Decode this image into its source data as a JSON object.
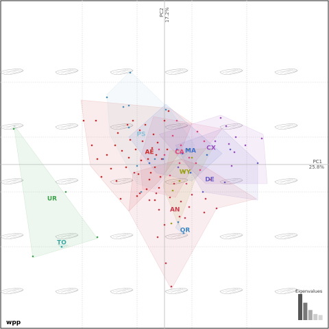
{
  "chart_data": {
    "type": "scatter",
    "title": "",
    "xlabel": "PC1",
    "xlabel_value": "25.8%",
    "ylabel": "PC2",
    "ylabel_value": "17.2%",
    "xlim": [
      -3,
      3
    ],
    "ylim": [
      -3,
      3
    ],
    "grid": true,
    "grid_style": "dotted",
    "convex_hulls": true,
    "background_shapes": "wing-outline",
    "corner_label": "wpp",
    "eigen_title": "Eigenvalues",
    "eigenvalues": [
      0.258,
      0.172,
      0.1,
      0.06,
      0.05
    ],
    "groups": [
      {
        "name": "AE",
        "color": "#cc2a2a",
        "label_at": [
          -0.55,
          0.45
        ],
        "hull": [
          [
            -3.05,
            2.35
          ],
          [
            0.2,
            2.05
          ],
          [
            1.0,
            1.5
          ],
          [
            0.6,
            0.5
          ],
          [
            -0.2,
            -0.6
          ],
          [
            -1.3,
            -1.7
          ],
          [
            -2.7,
            -0.05
          ]
        ]
      },
      {
        "name": "CA",
        "color": "#e0457a",
        "label_at": [
          0.55,
          0.45
        ],
        "hull": [
          [
            -0.4,
            1.75
          ],
          [
            2.1,
            1.3
          ],
          [
            1.2,
            0.2
          ],
          [
            0.4,
            -1.2
          ],
          [
            -0.8,
            -0.9
          ],
          [
            -0.9,
            0.2
          ]
        ]
      },
      {
        "name": "PS",
        "color": "#8fc1d6",
        "label_at": [
          -0.85,
          1.1
        ],
        "hull": [
          [
            -2.1,
            2.55
          ],
          [
            -1.25,
            3.4
          ],
          [
            0.2,
            2.0
          ],
          [
            1.1,
            0.7
          ],
          [
            -0.35,
            -0.9
          ],
          [
            -1.0,
            -0.7
          ],
          [
            -2.0,
            1.1
          ]
        ]
      },
      {
        "name": "MA",
        "color": "#3d6fd1",
        "label_at": [
          0.95,
          0.5
        ],
        "hull": [
          [
            0.05,
            2.2
          ],
          [
            2.1,
            0.4
          ],
          [
            1.0,
            -0.6
          ],
          [
            -0.3,
            -0.3
          ],
          [
            -1.3,
            1.0
          ]
        ]
      },
      {
        "name": "CX",
        "color": "#9b4dbf",
        "label_at": [
          1.7,
          0.6
        ],
        "hull": [
          [
            -0.2,
            1.1
          ],
          [
            2.05,
            1.8
          ],
          [
            3.6,
            1.1
          ],
          [
            3.75,
            -0.7
          ],
          [
            1.5,
            -0.7
          ],
          [
            0.5,
            0.3
          ]
        ]
      },
      {
        "name": "WY",
        "color": "#9aa318",
        "label_at": [
          0.75,
          -0.28
        ],
        "hull": [
          [
            0.2,
            0.5
          ],
          [
            1.75,
            0.6
          ],
          [
            1.1,
            -0.6
          ],
          [
            0.5,
            -2.2
          ],
          [
            -0.05,
            -0.8
          ]
        ]
      },
      {
        "name": "DE",
        "color": "#6b5fc7",
        "label_at": [
          1.65,
          -0.55
        ],
        "hull": [
          [
            0.4,
            0.7
          ],
          [
            2.1,
            1.3
          ],
          [
            3.4,
            0.1
          ],
          [
            3.4,
            -1.3
          ],
          [
            1.4,
            -1.0
          ]
        ]
      },
      {
        "name": "AN",
        "color": "#c93a4a",
        "label_at": [
          0.38,
          -1.65
        ],
        "hull": [
          [
            -1.15,
            -0.3
          ],
          [
            0.6,
            0.2
          ],
          [
            1.5,
            -0.1
          ],
          [
            3.35,
            -1.25
          ],
          [
            1.9,
            -1.6
          ],
          [
            0.25,
            -4.55
          ],
          [
            -1.3,
            -1.7
          ]
        ]
      },
      {
        "name": "OR",
        "color": "#3b86c4",
        "label_at": [
          0.75,
          -2.4
        ],
        "hull": [
          [
            0.5,
            -2.1
          ],
          [
            0.7,
            -2.55
          ],
          [
            0.4,
            -2.3
          ]
        ]
      },
      {
        "name": "UR",
        "color": "#3fa34d",
        "label_at": [
          -4.1,
          -1.25
        ],
        "hull": [
          [
            -5.5,
            1.45
          ],
          [
            -2.45,
            -2.7
          ],
          [
            -4.8,
            -3.4
          ]
        ]
      },
      {
        "name": "TO",
        "color": "#3aa8a0",
        "label_at": [
          -3.75,
          -2.85
        ],
        "hull": [
          [
            -3.75,
            -3.05
          ],
          [
            -3.5,
            -2.95
          ],
          [
            -3.9,
            -2.9
          ]
        ]
      }
    ],
    "points": [
      {
        "group": "AE",
        "color": "#cc2a2a",
        "xy": [
          [
            -2.95,
            1.6
          ],
          [
            -2.5,
            1.6
          ],
          [
            -2.65,
            0.7
          ],
          [
            -2.45,
            0.2
          ],
          [
            -2.1,
            0.35
          ],
          [
            -1.95,
            -0.15
          ],
          [
            -1.8,
            0.7
          ],
          [
            -1.7,
            1.15
          ],
          [
            -1.55,
            0.5
          ],
          [
            -1.4,
            -0.1
          ],
          [
            -1.3,
            0.25
          ],
          [
            -1.25,
            0.9
          ],
          [
            -1.15,
            1.6
          ],
          [
            -1.05,
            0.55
          ],
          [
            -0.95,
            -0.35
          ],
          [
            -0.85,
            0.15
          ],
          [
            -0.8,
            0.85
          ],
          [
            -0.7,
            1.45
          ],
          [
            -0.6,
            0.2
          ],
          [
            -0.55,
            -0.55
          ],
          [
            -0.45,
            0.6
          ],
          [
            -0.4,
            1.1
          ],
          [
            -0.35,
            -0.1
          ],
          [
            -0.3,
            0.35
          ],
          [
            -0.25,
            0.8
          ],
          [
            -0.15,
            -0.45
          ],
          [
            -0.1,
            0.2
          ],
          [
            0.0,
            1.6
          ],
          [
            0.1,
            0.55
          ],
          [
            -0.2,
            -0.85
          ],
          [
            -1.6,
            -1.25
          ],
          [
            -1.0,
            -1.15
          ],
          [
            -0.65,
            -0.9
          ],
          [
            -1.35,
            1.45
          ],
          [
            -2.3,
            -0.45
          ],
          [
            -0.5,
            -0.3
          ],
          [
            -0.9,
            1.25
          ],
          [
            0.15,
            1.95
          ],
          [
            -1.75,
            -0.6
          ],
          [
            -0.35,
            -1.3
          ]
        ]
      },
      {
        "group": "CA",
        "color": "#e0457a",
        "xy": [
          [
            0.3,
            1.05
          ],
          [
            0.6,
            0.7
          ],
          [
            0.9,
            0.25
          ],
          [
            1.2,
            1.2
          ],
          [
            1.45,
            0.85
          ],
          [
            0.55,
            0.05
          ],
          [
            0.2,
            -0.4
          ],
          [
            0.8,
            -0.7
          ],
          [
            1.15,
            0.05
          ],
          [
            0.45,
            1.6
          ],
          [
            1.3,
            -0.2
          ],
          [
            0.0,
            0.35
          ],
          [
            -0.2,
            0.55
          ]
        ]
      },
      {
        "group": "PS",
        "color": "#4c91b8",
        "xy": [
          [
            -2.1,
            2.45
          ],
          [
            -1.5,
            2.1
          ],
          [
            -1.25,
            3.35
          ],
          [
            -1.3,
            1.35
          ],
          [
            -0.35,
            0.2
          ],
          [
            -1.0,
            -0.05
          ],
          [
            -0.85,
            -1.0
          ],
          [
            -1.3,
            2.15
          ],
          [
            0.05,
            2.0
          ]
        ]
      },
      {
        "group": "MA",
        "color": "#3d6fd1",
        "xy": [
          [
            0.45,
            0.55
          ],
          [
            0.65,
            0.4
          ],
          [
            1.55,
            0.35
          ],
          [
            -0.05,
            0.2
          ],
          [
            -0.55,
            0.05
          ],
          [
            0.95,
            -0.3
          ]
        ]
      },
      {
        "group": "CX",
        "color": "#9b4dbf",
        "xy": [
          [
            2.05,
            1.7
          ],
          [
            2.25,
            1.4
          ],
          [
            2.55,
            0.45
          ],
          [
            2.6,
            1.0
          ],
          [
            2.95,
            0.7
          ],
          [
            2.45,
            -0.05
          ],
          [
            3.55,
            0.95
          ],
          [
            1.85,
            0.85
          ],
          [
            2.35,
            0.75
          ]
        ]
      },
      {
        "group": "WY",
        "color": "#9aa318",
        "xy": [
          [
            1.0,
            0.25
          ],
          [
            0.7,
            -0.25
          ],
          [
            0.55,
            -0.6
          ],
          [
            0.3,
            -0.95
          ],
          [
            0.25,
            -2.15
          ],
          [
            0.85,
            0.55
          ]
        ]
      },
      {
        "group": "DE",
        "color": "#6b5fc7",
        "xy": [
          [
            3.4,
            0.05
          ],
          [
            2.2,
            -0.65
          ],
          [
            1.4,
            -1.0
          ],
          [
            0.5,
            -0.1
          ],
          [
            2.4,
            0.55
          ]
        ]
      },
      {
        "group": "AN",
        "color": "#c93a4a",
        "xy": [
          [
            -1.1,
            -0.3
          ],
          [
            -0.3,
            -1.05
          ],
          [
            0.2,
            -1.2
          ],
          [
            0.6,
            -1.35
          ],
          [
            1.0,
            -1.1
          ],
          [
            1.5,
            -1.25
          ],
          [
            1.9,
            -1.6
          ],
          [
            1.45,
            -1.75
          ],
          [
            0.9,
            -1.55
          ],
          [
            0.55,
            -1.9
          ],
          [
            0.0,
            -2.2
          ],
          [
            -0.25,
            -2.65
          ],
          [
            0.05,
            -3.6
          ],
          [
            0.25,
            -4.45
          ],
          [
            -0.55,
            -1.3
          ],
          [
            0.35,
            -0.7
          ],
          [
            1.65,
            -0.55
          ],
          [
            -0.9,
            -1.05
          ],
          [
            0.75,
            -1.95
          ],
          [
            -0.2,
            -1.65
          ]
        ]
      },
      {
        "group": "OR",
        "color": "#3b86c4",
        "xy": [
          [
            0.7,
            -2.5
          ],
          [
            0.5,
            -2.1
          ]
        ]
      },
      {
        "group": "UR",
        "color": "#3fa34d",
        "xy": [
          [
            -5.5,
            1.3
          ],
          [
            -2.45,
            -2.65
          ],
          [
            -4.8,
            -3.35
          ],
          [
            -3.6,
            -1.0
          ]
        ]
      },
      {
        "group": "TO",
        "color": "#3aa8a0",
        "xy": [
          [
            -3.75,
            -3.0
          ]
        ]
      }
    ]
  }
}
